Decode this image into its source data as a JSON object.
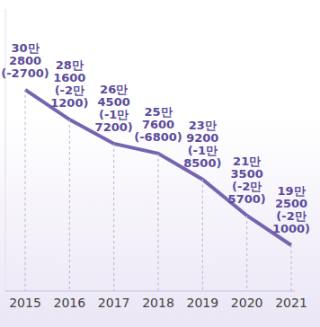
{
  "chart_data": {
    "type": "line",
    "categories": [
      "2015",
      "2016",
      "2017",
      "2018",
      "2019",
      "2020",
      "2021"
    ],
    "values": [
      302800,
      281600,
      264500,
      257600,
      239200,
      213500,
      192500
    ],
    "value_labels": [
      "30만 2800",
      "28만 1600",
      "26만 4500",
      "25만 7600",
      "23만 9200",
      "21만 3500",
      "19만 2500"
    ],
    "changes": [
      -2700,
      -21200,
      -17200,
      -6800,
      -18500,
      -25700,
      -21000
    ],
    "change_labels": [
      "(-2700)",
      "(-2만 1200)",
      "(-1만 7200)",
      "(-6800)",
      "(-1만 8500)",
      "(-2만 5700)",
      "(-2만 1000)"
    ],
    "color": "#7565b0",
    "ylim": [
      160000,
      360000
    ],
    "data_labels": true,
    "tick_labels": "x",
    "grid": false
  }
}
